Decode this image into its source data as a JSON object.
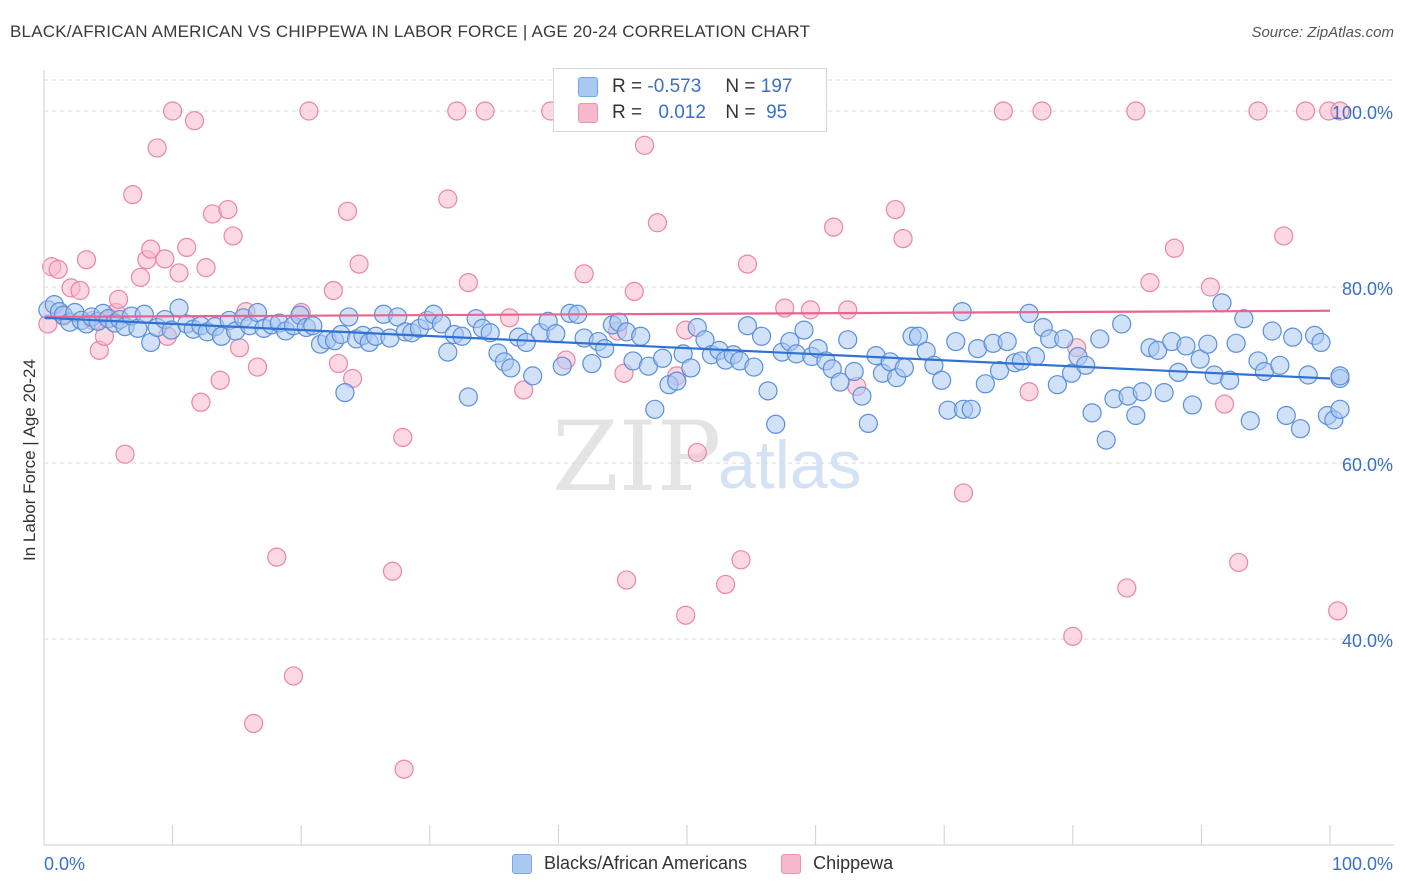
{
  "title": "BLACK/AFRICAN AMERICAN VS CHIPPEWA IN LABOR FORCE | AGE 20-24 CORRELATION CHART",
  "source": "Source: ZipAtlas.com",
  "watermark": {
    "zip": "ZIP",
    "atlas": "atlas"
  },
  "legend": {
    "rows": [
      {
        "r_label": "R =",
        "r_value": "-0.573",
        "n_label": "N =",
        "n_value": "197",
        "color": "#a9c8f2"
      },
      {
        "r_label": "R =",
        "r_value": "0.012",
        "n_label": "N =",
        "n_value": "95",
        "color": "#f7b8cd"
      }
    ]
  },
  "bottom_legend": [
    {
      "label": "Blacks/African Americans",
      "color": "#a9c8f2"
    },
    {
      "label": "Chippewa",
      "color": "#f7b8cd"
    }
  ],
  "colors": {
    "blue_fill": "#a9c8f2",
    "blue_stroke": "#5b8fd9",
    "blue_line": "#2f72d4",
    "pink_fill": "#f7b8cd",
    "pink_stroke": "#ea85a6",
    "pink_line": "#e8658f",
    "tick_label": "#3a6fc8"
  },
  "chart_data": {
    "type": "scatter",
    "title": "BLACK/AFRICAN AMERICAN VS CHIPPEWA IN LABOR FORCE | AGE 20-24 CORRELATION CHART",
    "xlabel": "",
    "ylabel": "In Labor Force | Age 20-24",
    "xlim": [
      0,
      100
    ],
    "ylim": [
      20,
      104
    ],
    "x_tick_labels": [
      "0.0%",
      "100.0%"
    ],
    "y_ticks": [
      40,
      60,
      80,
      100
    ],
    "y_tick_labels": [
      "40.0%",
      "60.0%",
      "80.0%",
      "100.0%"
    ],
    "grid": true,
    "legend_position": "top-center",
    "series": [
      {
        "name": "Blacks/African Americans",
        "trend": {
          "x": [
            0,
            100
          ],
          "y": [
            76.5,
            69.6
          ]
        },
        "points": [
          [
            0.3,
            77.4
          ],
          [
            0.8,
            78.0
          ],
          [
            1.2,
            77.2
          ],
          [
            1.5,
            76.8
          ],
          [
            2.0,
            76.0
          ],
          [
            2.4,
            77.1
          ],
          [
            2.9,
            76.2
          ],
          [
            3.3,
            75.8
          ],
          [
            3.7,
            76.6
          ],
          [
            4.2,
            76.1
          ],
          [
            4.6,
            77.0
          ],
          [
            5.0,
            76.4
          ],
          [
            5.5,
            75.9
          ],
          [
            5.9,
            76.3
          ],
          [
            6.3,
            75.5
          ],
          [
            6.8,
            76.7
          ],
          [
            7.3,
            75.3
          ],
          [
            7.8,
            76.9
          ],
          [
            8.3,
            73.7
          ],
          [
            8.8,
            75.4
          ],
          [
            9.4,
            76.3
          ],
          [
            9.9,
            75.1
          ],
          [
            10.5,
            77.6
          ],
          [
            11.1,
            75.8
          ],
          [
            11.6,
            75.2
          ],
          [
            12.2,
            75.6
          ],
          [
            12.7,
            74.9
          ],
          [
            13.3,
            75.5
          ],
          [
            13.8,
            74.4
          ],
          [
            14.4,
            76.2
          ],
          [
            14.9,
            75.0
          ],
          [
            15.5,
            76.5
          ],
          [
            16.0,
            75.6
          ],
          [
            16.6,
            77.1
          ],
          [
            17.1,
            75.3
          ],
          [
            17.7,
            75.7
          ],
          [
            18.3,
            75.9
          ],
          [
            18.8,
            75.0
          ],
          [
            19.4,
            75.6
          ],
          [
            19.9,
            76.8
          ],
          [
            20.4,
            75.4
          ],
          [
            20.9,
            75.6
          ],
          [
            21.5,
            73.5
          ],
          [
            22.0,
            74.0
          ],
          [
            22.6,
            73.9
          ],
          [
            23.1,
            74.6
          ],
          [
            23.4,
            68.0
          ],
          [
            23.7,
            76.6
          ],
          [
            24.3,
            74.1
          ],
          [
            24.8,
            74.5
          ],
          [
            25.3,
            73.7
          ],
          [
            25.8,
            74.4
          ],
          [
            26.4,
            76.9
          ],
          [
            26.9,
            74.2
          ],
          [
            27.5,
            76.6
          ],
          [
            28.1,
            74.9
          ],
          [
            28.6,
            74.8
          ],
          [
            29.2,
            75.3
          ],
          [
            29.8,
            76.2
          ],
          [
            30.3,
            76.9
          ],
          [
            30.9,
            75.8
          ],
          [
            31.4,
            72.6
          ],
          [
            31.9,
            74.6
          ],
          [
            32.5,
            74.4
          ],
          [
            33.0,
            67.5
          ],
          [
            33.6,
            76.4
          ],
          [
            34.1,
            75.3
          ],
          [
            34.7,
            74.8
          ],
          [
            35.3,
            72.5
          ],
          [
            35.8,
            71.5
          ],
          [
            36.3,
            70.8
          ],
          [
            36.9,
            74.3
          ],
          [
            37.5,
            73.7
          ],
          [
            38.0,
            69.9
          ],
          [
            38.6,
            74.8
          ],
          [
            39.2,
            76.1
          ],
          [
            39.8,
            74.7
          ],
          [
            40.3,
            71.0
          ],
          [
            40.9,
            77.0
          ],
          [
            41.5,
            76.9
          ],
          [
            42.0,
            74.2
          ],
          [
            42.6,
            71.3
          ],
          [
            43.1,
            73.8
          ],
          [
            43.6,
            73.0
          ],
          [
            44.2,
            75.7
          ],
          [
            44.7,
            76.0
          ],
          [
            45.3,
            74.9
          ],
          [
            45.8,
            71.6
          ],
          [
            46.4,
            74.4
          ],
          [
            47.0,
            71.0
          ],
          [
            47.5,
            66.1
          ],
          [
            48.1,
            71.9
          ],
          [
            48.6,
            68.9
          ],
          [
            49.2,
            69.3
          ],
          [
            49.7,
            72.4
          ],
          [
            50.3,
            70.8
          ],
          [
            50.8,
            75.4
          ],
          [
            51.4,
            74.0
          ],
          [
            51.9,
            72.3
          ],
          [
            52.5,
            72.8
          ],
          [
            53.0,
            71.7
          ],
          [
            53.6,
            72.3
          ],
          [
            54.1,
            71.6
          ],
          [
            54.7,
            75.6
          ],
          [
            55.2,
            70.9
          ],
          [
            55.8,
            74.4
          ],
          [
            56.3,
            68.2
          ],
          [
            56.9,
            64.4
          ],
          [
            57.4,
            72.6
          ],
          [
            58.0,
            73.8
          ],
          [
            58.5,
            72.4
          ],
          [
            59.1,
            75.1
          ],
          [
            59.7,
            72.1
          ],
          [
            60.2,
            73.0
          ],
          [
            60.8,
            71.6
          ],
          [
            61.3,
            70.7
          ],
          [
            61.9,
            69.2
          ],
          [
            62.5,
            74.0
          ],
          [
            63.0,
            70.4
          ],
          [
            63.6,
            67.6
          ],
          [
            64.1,
            64.5
          ],
          [
            64.7,
            72.2
          ],
          [
            65.2,
            70.2
          ],
          [
            65.8,
            71.5
          ],
          [
            66.3,
            69.7
          ],
          [
            66.9,
            70.8
          ],
          [
            67.5,
            74.4
          ],
          [
            68.0,
            74.4
          ],
          [
            68.6,
            72.7
          ],
          [
            69.2,
            71.1
          ],
          [
            69.8,
            69.4
          ],
          [
            70.3,
            66.0
          ],
          [
            70.9,
            73.8
          ],
          [
            71.4,
            77.2
          ],
          [
            71.5,
            66.1
          ],
          [
            72.1,
            66.1
          ],
          [
            72.6,
            73.0
          ],
          [
            73.2,
            69.0
          ],
          [
            73.8,
            73.6
          ],
          [
            74.3,
            70.5
          ],
          [
            74.9,
            73.8
          ],
          [
            75.5,
            71.4
          ],
          [
            76.0,
            71.6
          ],
          [
            76.6,
            77.0
          ],
          [
            77.1,
            72.1
          ],
          [
            77.7,
            75.4
          ],
          [
            78.2,
            74.1
          ],
          [
            78.8,
            68.9
          ],
          [
            79.3,
            74.1
          ],
          [
            79.9,
            70.2
          ],
          [
            80.4,
            72.1
          ],
          [
            81.0,
            71.1
          ],
          [
            81.5,
            65.7
          ],
          [
            82.1,
            74.1
          ],
          [
            82.6,
            62.6
          ],
          [
            83.2,
            67.3
          ],
          [
            83.8,
            75.8
          ],
          [
            84.3,
            67.6
          ],
          [
            84.9,
            65.4
          ],
          [
            85.4,
            68.1
          ],
          [
            86.0,
            73.1
          ],
          [
            86.6,
            72.8
          ],
          [
            87.1,
            68.0
          ],
          [
            87.7,
            73.8
          ],
          [
            88.2,
            70.3
          ],
          [
            88.8,
            73.3
          ],
          [
            89.3,
            66.6
          ],
          [
            89.9,
            71.8
          ],
          [
            90.5,
            73.5
          ],
          [
            91.0,
            70.0
          ],
          [
            91.6,
            78.2
          ],
          [
            92.2,
            69.4
          ],
          [
            92.7,
            73.6
          ],
          [
            93.3,
            76.4
          ],
          [
            93.8,
            64.8
          ],
          [
            94.4,
            71.6
          ],
          [
            94.9,
            70.4
          ],
          [
            95.5,
            75.0
          ],
          [
            96.1,
            71.1
          ],
          [
            96.6,
            65.4
          ],
          [
            97.1,
            74.3
          ],
          [
            97.7,
            63.9
          ],
          [
            98.3,
            70.0
          ],
          [
            98.8,
            74.5
          ],
          [
            99.3,
            73.7
          ],
          [
            99.8,
            65.4
          ],
          [
            100.3,
            64.9
          ],
          [
            101.2,
            66.1
          ],
          [
            102.0,
            69.6
          ],
          [
            102.6,
            69.9
          ]
        ]
      },
      {
        "name": "Chippewa",
        "trend": {
          "x": [
            0,
            100
          ],
          "y": [
            76.6,
            77.3
          ]
        },
        "points": [
          [
            0.3,
            75.8
          ],
          [
            0.6,
            82.3
          ],
          [
            1.1,
            82.0
          ],
          [
            1.5,
            76.7
          ],
          [
            2.1,
            79.9
          ],
          [
            2.8,
            79.6
          ],
          [
            3.3,
            83.1
          ],
          [
            3.8,
            76.2
          ],
          [
            4.3,
            72.8
          ],
          [
            4.7,
            74.4
          ],
          [
            5.1,
            76.5
          ],
          [
            5.6,
            77.1
          ],
          [
            5.8,
            78.6
          ],
          [
            6.3,
            61.0
          ],
          [
            6.9,
            90.5
          ],
          [
            7.5,
            81.1
          ],
          [
            8.0,
            83.1
          ],
          [
            8.3,
            84.3
          ],
          [
            8.8,
            95.8
          ],
          [
            9.4,
            83.2
          ],
          [
            9.6,
            74.4
          ],
          [
            10.0,
            100.0
          ],
          [
            10.5,
            81.6
          ],
          [
            11.1,
            84.5
          ],
          [
            11.7,
            98.9
          ],
          [
            12.2,
            66.9
          ],
          [
            12.6,
            82.2
          ],
          [
            13.1,
            88.3
          ],
          [
            13.7,
            69.4
          ],
          [
            14.3,
            88.8
          ],
          [
            14.7,
            85.8
          ],
          [
            15.2,
            73.1
          ],
          [
            15.7,
            77.2
          ],
          [
            16.6,
            70.9
          ],
          [
            16.3,
            30.4
          ],
          [
            18.1,
            49.3
          ],
          [
            19.4,
            35.8
          ],
          [
            20.0,
            77.1
          ],
          [
            20.6,
            100.0
          ],
          [
            22.5,
            79.6
          ],
          [
            22.9,
            71.3
          ],
          [
            23.6,
            88.6
          ],
          [
            24.0,
            69.6
          ],
          [
            24.5,
            82.6
          ],
          [
            27.1,
            47.7
          ],
          [
            27.9,
            62.9
          ],
          [
            28.0,
            25.2
          ],
          [
            31.4,
            90.0
          ],
          [
            32.1,
            100.0
          ],
          [
            33.0,
            80.5
          ],
          [
            34.3,
            100.0
          ],
          [
            36.2,
            76.5
          ],
          [
            37.3,
            68.3
          ],
          [
            39.4,
            100.0
          ],
          [
            40.6,
            71.7
          ],
          [
            42.0,
            81.5
          ],
          [
            44.5,
            100.0
          ],
          [
            44.6,
            75.0
          ],
          [
            45.1,
            70.2
          ],
          [
            45.9,
            79.5
          ],
          [
            45.3,
            46.7
          ],
          [
            46.7,
            96.1
          ],
          [
            47.7,
            87.3
          ],
          [
            49.2,
            69.9
          ],
          [
            49.9,
            75.1
          ],
          [
            49.9,
            42.7
          ],
          [
            50.8,
            61.2
          ],
          [
            53.0,
            46.2
          ],
          [
            54.2,
            49.0
          ],
          [
            54.7,
            82.6
          ],
          [
            57.6,
            77.6
          ],
          [
            59.6,
            77.4
          ],
          [
            61.4,
            86.8
          ],
          [
            62.5,
            77.4
          ],
          [
            63.2,
            68.7
          ],
          [
            66.2,
            88.8
          ],
          [
            66.8,
            85.5
          ],
          [
            71.5,
            56.6
          ],
          [
            74.6,
            100.0
          ],
          [
            77.6,
            100.0
          ],
          [
            76.6,
            68.1
          ],
          [
            80.0,
            40.3
          ],
          [
            80.3,
            73.1
          ],
          [
            84.2,
            45.8
          ],
          [
            84.9,
            100.0
          ],
          [
            86.0,
            80.5
          ],
          [
            87.9,
            84.4
          ],
          [
            90.7,
            80.0
          ],
          [
            91.8,
            66.7
          ],
          [
            92.9,
            48.7
          ],
          [
            94.4,
            100.0
          ],
          [
            96.4,
            85.8
          ],
          [
            98.1,
            100.0
          ],
          [
            99.9,
            100.0
          ],
          [
            100.6,
            43.2
          ],
          [
            101.1,
            100.0
          ]
        ]
      }
    ]
  }
}
